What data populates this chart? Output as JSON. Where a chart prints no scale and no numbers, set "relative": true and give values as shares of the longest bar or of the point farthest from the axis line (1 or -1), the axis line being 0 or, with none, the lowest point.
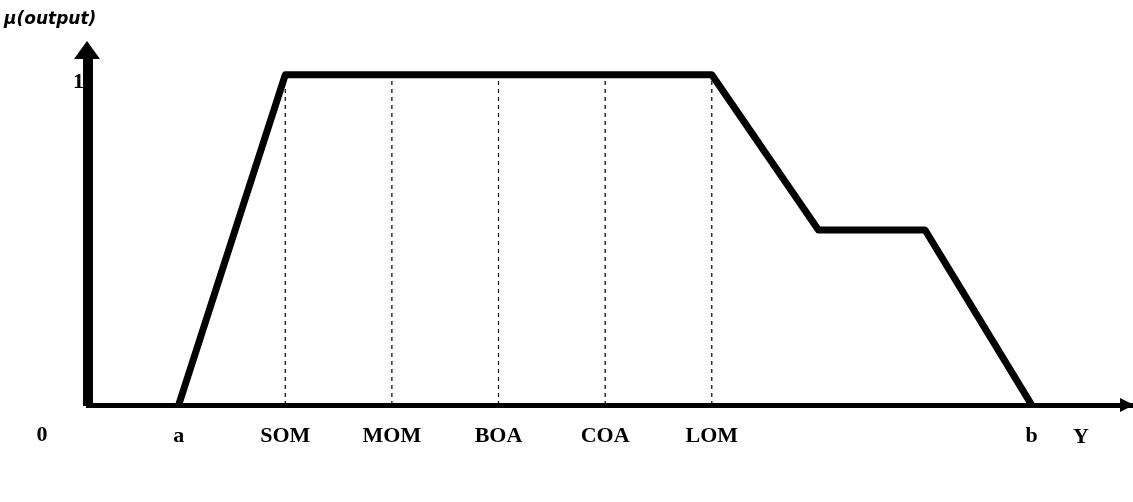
{
  "chart_data": {
    "type": "line",
    "ylabel": "μ(output)",
    "xlabel": "Y",
    "relative": true,
    "categories": [
      "a",
      "SOM",
      "MOM",
      "BOA",
      "COA",
      "LOM",
      null,
      null,
      "b"
    ],
    "series": [
      {
        "color": "#000000",
        "values": [
          0,
          1,
          1,
          1,
          1,
          1,
          0.53,
          0.53,
          0
        ]
      }
    ],
    "marker": "none",
    "annotations": [
      "0",
      "1"
    ],
    "ref_lines": [
      {
        "axis": "x",
        "value": "SOM",
        "line_style": "dashed"
      },
      {
        "axis": "x",
        "value": "MOM",
        "line_style": "dashed"
      },
      {
        "axis": "x",
        "value": "BOA",
        "line_style": "dashed"
      },
      {
        "axis": "x",
        "value": "COA",
        "line_style": "dashed"
      },
      {
        "axis": "x",
        "value": "LOM",
        "line_style": "dashed"
      }
    ]
  }
}
